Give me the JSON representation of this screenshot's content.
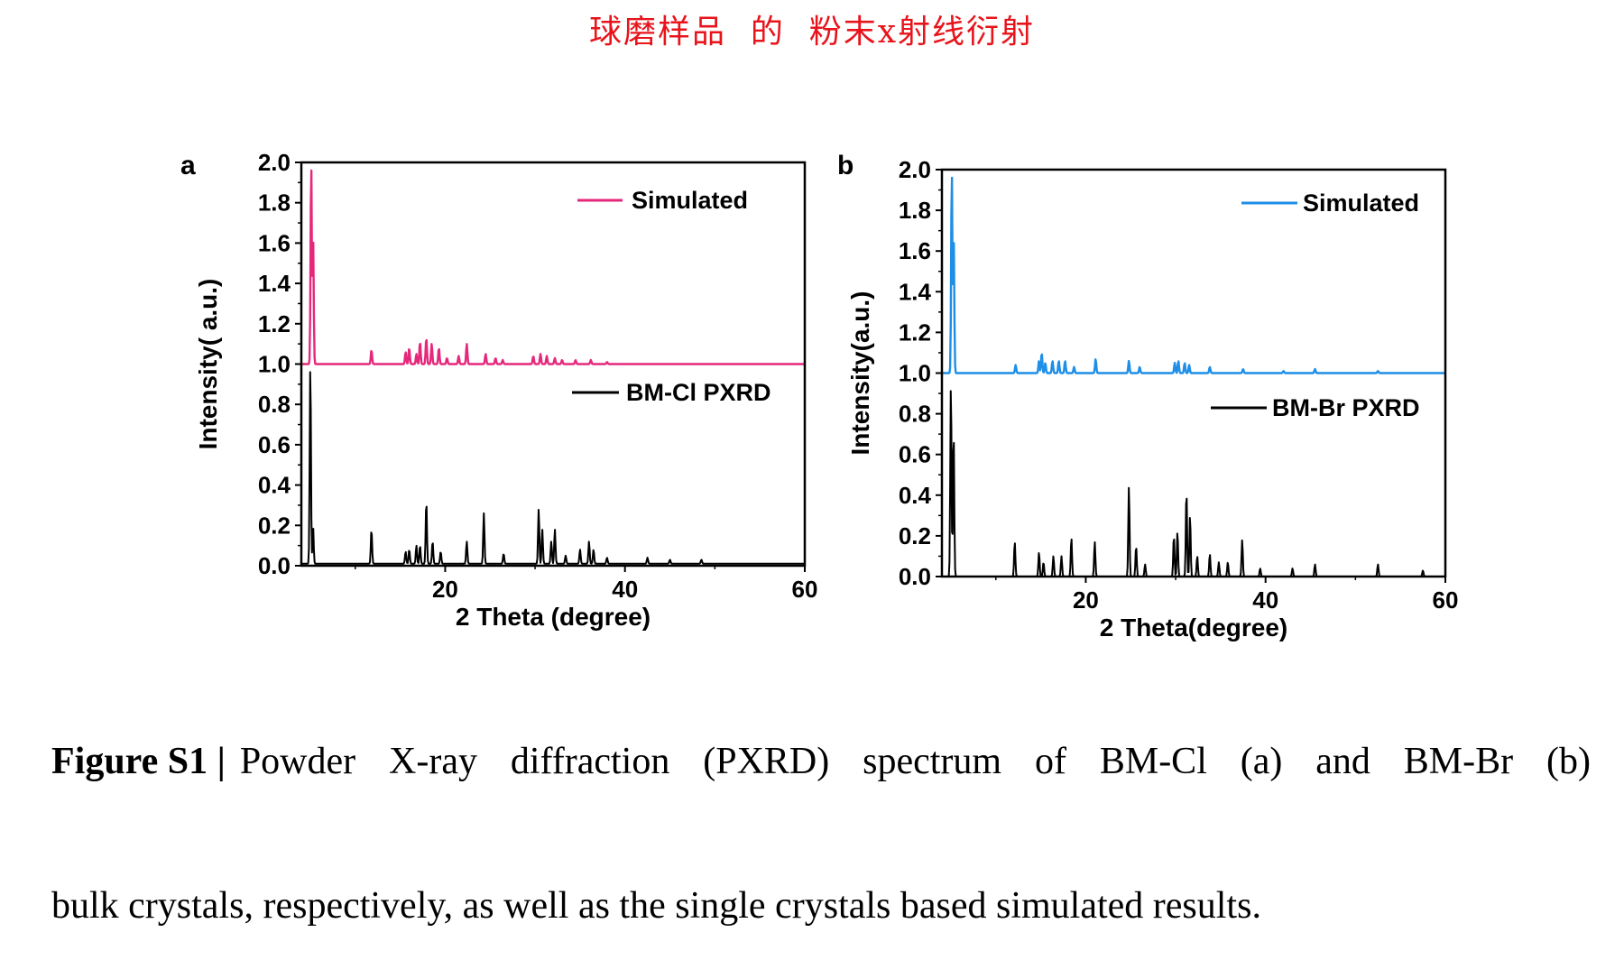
{
  "annotation": "球磨样品  的  粉末x射线衍射",
  "caption": {
    "label": "Figure S1 |",
    "line1": "Powder X-ray diffraction (PXRD) spectrum of BM-Cl (a) and BM-Br (b)",
    "line2": "bulk crystals, respectively, as well as the single crystals based simulated results."
  },
  "chart_data": [
    {
      "panel": "a",
      "type": "line",
      "xlabel": "2 Theta (degree)",
      "ylabel": "Intensity( a.u.)",
      "xlim": [
        4,
        60
      ],
      "ylim": [
        0,
        2
      ],
      "xticks": [
        20,
        40,
        60
      ],
      "yticks": [
        "0.0",
        "0.2",
        "0.4",
        "0.6",
        "0.8",
        "1.0",
        "1.2",
        "1.4",
        "1.6",
        "1.8",
        "2.0"
      ],
      "grid": false,
      "series": [
        {
          "name": "Simulated",
          "color": "#e6287c",
          "baseline": 1.0,
          "peaks": [
            [
              5.1,
              2.0
            ],
            [
              5.3,
              1.66
            ],
            [
              11.8,
              1.07
            ],
            [
              15.6,
              1.06
            ],
            [
              16.0,
              1.08
            ],
            [
              16.8,
              1.05
            ],
            [
              17.2,
              1.11
            ],
            [
              17.9,
              1.13
            ],
            [
              18.5,
              1.1
            ],
            [
              19.3,
              1.08
            ],
            [
              20.2,
              1.03
            ],
            [
              21.5,
              1.04
            ],
            [
              22.4,
              1.1
            ],
            [
              24.5,
              1.05
            ],
            [
              25.6,
              1.03
            ],
            [
              26.4,
              1.02
            ],
            [
              29.8,
              1.04
            ],
            [
              30.6,
              1.05
            ],
            [
              31.3,
              1.04
            ],
            [
              32.2,
              1.03
            ],
            [
              33.0,
              1.02
            ],
            [
              34.5,
              1.02
            ],
            [
              36.2,
              1.02
            ],
            [
              38.0,
              1.01
            ]
          ]
        },
        {
          "name": "BM-Cl PXRD",
          "color": "#000000",
          "baseline": 0.01,
          "peaks": [
            [
              5.0,
              1.0
            ],
            [
              5.3,
              0.2
            ],
            [
              11.8,
              0.18
            ],
            [
              15.6,
              0.07
            ],
            [
              16.0,
              0.08
            ],
            [
              16.8,
              0.1
            ],
            [
              17.2,
              0.1
            ],
            [
              17.9,
              0.32
            ],
            [
              18.6,
              0.12
            ],
            [
              19.5,
              0.07
            ],
            [
              22.4,
              0.12
            ],
            [
              24.3,
              0.26
            ],
            [
              26.5,
              0.06
            ],
            [
              30.4,
              0.28
            ],
            [
              30.8,
              0.18
            ],
            [
              31.8,
              0.12
            ],
            [
              32.2,
              0.18
            ],
            [
              33.4,
              0.05
            ],
            [
              35.0,
              0.08
            ],
            [
              36.0,
              0.12
            ],
            [
              36.5,
              0.08
            ],
            [
              38.0,
              0.04
            ],
            [
              42.5,
              0.04
            ],
            [
              45.0,
              0.03
            ],
            [
              48.5,
              0.03
            ]
          ]
        }
      ]
    },
    {
      "panel": "b",
      "type": "line",
      "xlabel": "2 Theta(degree)",
      "ylabel": "Intensity(a.u.)",
      "xlim": [
        4,
        60
      ],
      "ylim": [
        0,
        2
      ],
      "xticks": [
        20,
        40,
        60
      ],
      "yticks": [
        "0.0",
        "0.2",
        "0.4",
        "0.6",
        "0.8",
        "1.0",
        "1.2",
        "1.4",
        "1.6",
        "1.8",
        "2.0"
      ],
      "grid": false,
      "series": [
        {
          "name": "Simulated",
          "color": "#1e8ee6",
          "baseline": 1.0,
          "peaks": [
            [
              5.1,
              2.0
            ],
            [
              5.3,
              1.7
            ],
            [
              12.2,
              1.04
            ],
            [
              14.8,
              1.06
            ],
            [
              15.1,
              1.1
            ],
            [
              15.5,
              1.05
            ],
            [
              16.3,
              1.06
            ],
            [
              17.0,
              1.06
            ],
            [
              17.7,
              1.06
            ],
            [
              18.7,
              1.03
            ],
            [
              21.1,
              1.07
            ],
            [
              24.8,
              1.06
            ],
            [
              26.0,
              1.03
            ],
            [
              29.9,
              1.05
            ],
            [
              30.3,
              1.06
            ],
            [
              31.0,
              1.05
            ],
            [
              31.5,
              1.04
            ],
            [
              33.8,
              1.03
            ],
            [
              37.5,
              1.02
            ],
            [
              42.0,
              1.01
            ],
            [
              45.5,
              1.02
            ],
            [
              52.5,
              1.01
            ]
          ]
        },
        {
          "name": "BM-Br PXRD",
          "color": "#000000",
          "baseline": 0.0,
          "peaks": [
            [
              5.0,
              0.95
            ],
            [
              5.3,
              0.72
            ],
            [
              12.1,
              0.17
            ],
            [
              14.8,
              0.12
            ],
            [
              15.3,
              0.07
            ],
            [
              16.4,
              0.1
            ],
            [
              17.3,
              0.1
            ],
            [
              18.4,
              0.19
            ],
            [
              21.0,
              0.17
            ],
            [
              24.8,
              0.44
            ],
            [
              25.6,
              0.15
            ],
            [
              26.6,
              0.06
            ],
            [
              29.8,
              0.2
            ],
            [
              30.2,
              0.22
            ],
            [
              31.2,
              0.42
            ],
            [
              31.6,
              0.3
            ],
            [
              32.4,
              0.1
            ],
            [
              33.8,
              0.11
            ],
            [
              34.8,
              0.07
            ],
            [
              35.8,
              0.07
            ],
            [
              37.4,
              0.18
            ],
            [
              39.4,
              0.04
            ],
            [
              43.0,
              0.04
            ],
            [
              45.5,
              0.06
            ],
            [
              52.5,
              0.06
            ],
            [
              57.5,
              0.03
            ]
          ]
        }
      ]
    }
  ],
  "panels": [
    {
      "letter": "a",
      "ylabel": "Intensity( a.u.)",
      "xlabel": "2 Theta (degree)",
      "legend_top": "Simulated",
      "legend_bottom": "BM-Cl PXRD"
    },
    {
      "letter": "b",
      "ylabel": "Intensity(a.u.)",
      "xlabel": "2 Theta(degree)",
      "legend_top": "Simulated",
      "legend_bottom": "BM-Br PXRD"
    }
  ]
}
